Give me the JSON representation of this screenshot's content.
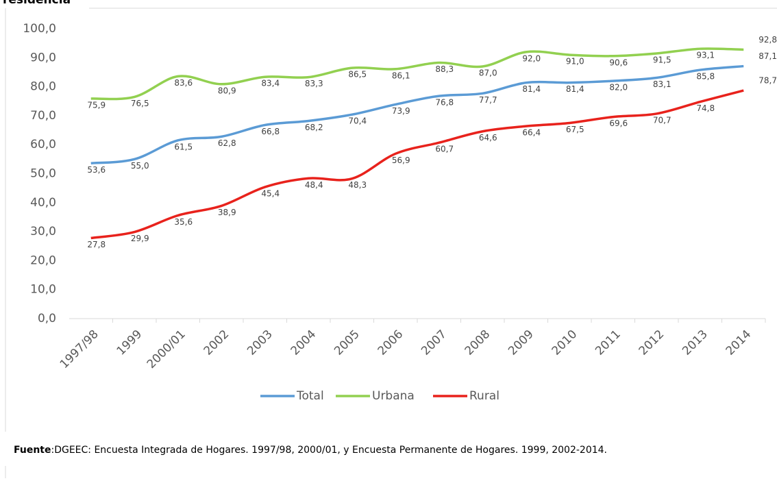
{
  "chart_data": {
    "type": "line",
    "title": "residencia",
    "categories": [
      "1997/98",
      "1999",
      "2000/01",
      "2002",
      "2003",
      "2004",
      "2005",
      "2006",
      "2007",
      "2008",
      "2009",
      "2010",
      "2011",
      "2012",
      "2013",
      "2014"
    ],
    "series": [
      {
        "name": "Total",
        "color": "#5b9bd5",
        "values": [
          53.6,
          55.0,
          61.5,
          62.8,
          66.8,
          68.2,
          70.4,
          73.9,
          76.8,
          77.7,
          81.4,
          81.4,
          82.0,
          83.1,
          85.8,
          87.1
        ],
        "value_labels": [
          "53,6",
          "55,0",
          "61,5",
          "62,8",
          "66,8",
          "68,2",
          "70,4",
          "73,9",
          "76,8",
          "77,7",
          "81,4",
          "81,4",
          "82,0",
          "83,1",
          "85,8",
          "87,1"
        ]
      },
      {
        "name": "Urbana",
        "color": "#92d050",
        "values": [
          75.9,
          76.5,
          83.6,
          80.9,
          83.4,
          83.3,
          86.5,
          86.1,
          88.3,
          87.0,
          92.0,
          91.0,
          90.6,
          91.5,
          93.1,
          92.8
        ],
        "value_labels": [
          "75,9",
          "76,5",
          "83,6",
          "80,9",
          "83,4",
          "83,3",
          "86,5",
          "86,1",
          "88,3",
          "87,0",
          "92,0",
          "91,0",
          "90,6",
          "91,5",
          "93,1",
          "92,8"
        ]
      },
      {
        "name": "Rural",
        "color": "#e8221c",
        "values": [
          27.8,
          29.9,
          35.6,
          38.9,
          45.4,
          48.4,
          48.3,
          56.9,
          60.7,
          64.6,
          66.4,
          67.5,
          69.6,
          70.7,
          74.8,
          78.7
        ],
        "value_labels": [
          "27,8",
          "29,9",
          "35,6",
          "38,9",
          "45,4",
          "48,4",
          "48,3",
          "56,9",
          "60,7",
          "64,6",
          "66,4",
          "67,5",
          "69,6",
          "70,7",
          "74,8",
          "78,7"
        ]
      }
    ],
    "ylim": [
      0,
      100
    ],
    "yticks": [
      {
        "value": 0,
        "label": "0,0"
      },
      {
        "value": 10,
        "label": "10,0"
      },
      {
        "value": 20,
        "label": "20,0"
      },
      {
        "value": 30,
        "label": "30,0"
      },
      {
        "value": 40,
        "label": "40,0"
      },
      {
        "value": 50,
        "label": "50,0"
      },
      {
        "value": 60,
        "label": "60,0"
      },
      {
        "value": 70,
        "label": "70,0"
      },
      {
        "value": 80,
        "label": "80,0"
      },
      {
        "value": 90,
        "label": "90,0"
      },
      {
        "value": 100,
        "label": "100,0"
      }
    ],
    "grid": false,
    "legend": "bottom",
    "source_label": "Fuente",
    "source": ":DGEEC: Encuesta Integrada de Hogares. 1997/98, 2000/01, y Encuesta Permanente de Hogares. 1999, 2002-2014."
  }
}
